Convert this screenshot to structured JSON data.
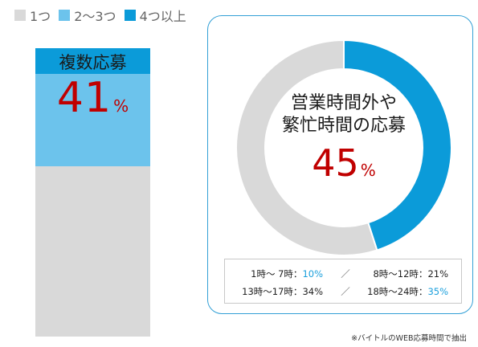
{
  "colors": {
    "one": "#d9d9d9",
    "two_three": "#6cc3ec",
    "four_plus": "#0b9bd9",
    "accent_red": "#c00000",
    "panel_border": "#33a0d6"
  },
  "legend": [
    {
      "label": "1つ",
      "color": "#d9d9d9"
    },
    {
      "label": "2〜3つ",
      "color": "#6cc3ec"
    },
    {
      "label": "4つ以上",
      "color": "#0b9bd9"
    }
  ],
  "bar": {
    "title": "複数応募",
    "value": "41",
    "unit": "%"
  },
  "donut": {
    "label_line1": "営業時間外や",
    "label_line2": "繁忙時間の応募",
    "value": "45",
    "unit": "%"
  },
  "breakdown": {
    "row1": {
      "left_label": "1時〜 7時：",
      "left_value": "10%",
      "sep": "／",
      "right_label": "8時〜12時：",
      "right_value": "21%"
    },
    "row2": {
      "left_label": "13時〜17時：",
      "left_value": "34%",
      "sep": "／",
      "right_label": "18時〜24時：",
      "right_value": "35%"
    }
  },
  "footnote": "※バイトルのWEB応募時間で抽出",
  "chart_data": [
    {
      "type": "bar",
      "stacked": true,
      "title": "複数応募",
      "categories": [
        ""
      ],
      "series": [
        {
          "name": "4つ以上",
          "values": [
            0.09
          ]
        },
        {
          "name": "2〜3つ",
          "values": [
            0.32
          ]
        },
        {
          "name": "1つ",
          "values": [
            0.59
          ]
        }
      ],
      "highlight": {
        "label": "複数応募",
        "value": 41,
        "unit": "%"
      },
      "ylim": [
        0,
        1
      ]
    },
    {
      "type": "pie",
      "donut": true,
      "title": "営業時間外や繁忙時間の応募",
      "slices": [
        {
          "label": "営業時間外や繁忙時間の応募",
          "value": 45
        },
        {
          "label": "",
          "value": 55
        }
      ],
      "breakdown": [
        {
          "label": "1時〜 7時",
          "value": 10
        },
        {
          "label": "8時〜12時",
          "value": 21
        },
        {
          "label": "13時〜17時",
          "value": 34
        },
        {
          "label": "18時〜24時",
          "value": 35
        }
      ]
    }
  ]
}
